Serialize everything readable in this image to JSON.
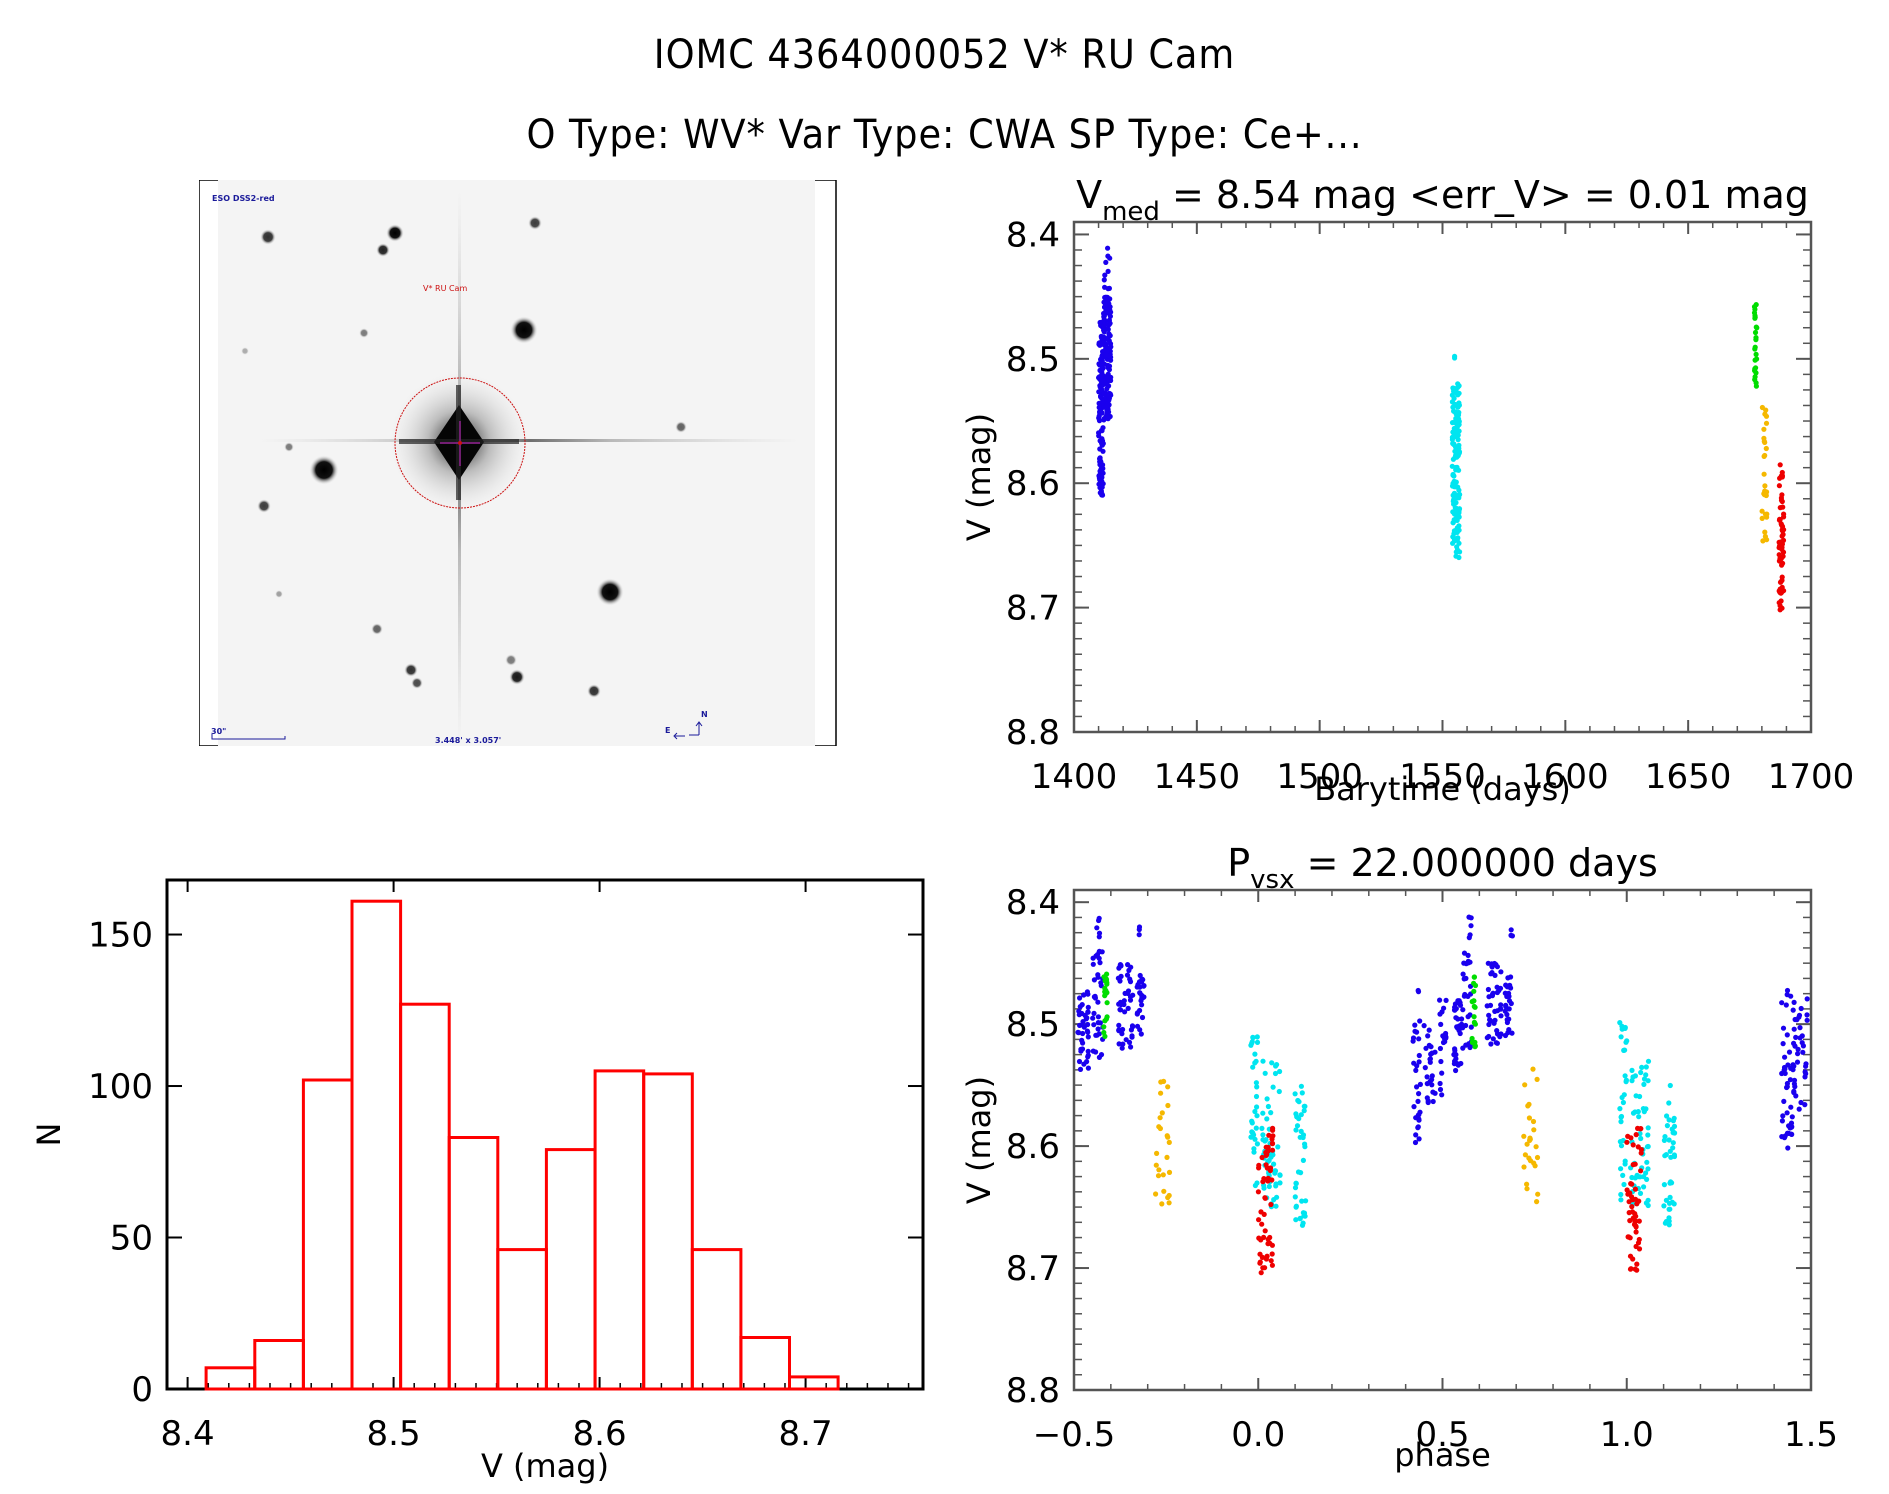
{
  "header": {
    "title_line1": "IOMC 4364000052    V* RU Cam",
    "title_line2": "O Type: WV*  Var Type: CWA  SP Type: Ce+..."
  },
  "finder_chart": {
    "survey_label": "ESO DSS2-red",
    "target_label": "V* RU Cam",
    "scale_label": "30\"",
    "field_size_label": "3.448' x 3.057'",
    "compass_north": "N",
    "compass_east": "E",
    "colors": {
      "annotation_blue": "#1a1a9a",
      "target_red": "#cc1111",
      "crosshair": "#aa22aa"
    }
  },
  "chart_data": [
    {
      "id": "lightcurve",
      "type": "scatter",
      "title": "V_med = 8.54 mag <err_V> = 0.01 mag",
      "title_parts": {
        "v": "V",
        "sub": "med",
        "rest": " = 8.54 mag <err_V> = 0.01 mag"
      },
      "xlabel": "Barytime (days)",
      "ylabel": "V (mag)",
      "xlim": [
        1400,
        1700
      ],
      "ylim": [
        8.8,
        8.39
      ],
      "y_inverted": true,
      "xticks": [
        1400,
        1450,
        1500,
        1550,
        1600,
        1650,
        1700
      ],
      "xtick_labels": [
        "1400",
        "1450",
        "1500",
        "1550",
        "1600",
        "1650",
        "1700"
      ],
      "xminor_step": 10,
      "yticks": [
        8.4,
        8.5,
        8.6,
        8.7,
        8.8
      ],
      "ytick_labels": [
        "8.4",
        "8.5",
        "8.6",
        "8.7",
        "8.8"
      ],
      "yminor_step": 0.0125,
      "series": [
        {
          "name": "season-1",
          "color": "#1a00ee",
          "segments": [
            {
              "x": [
                1410,
                1412
              ],
              "y": [
                8.47,
                8.61
              ],
              "n": 130
            },
            {
              "x": [
                1412,
                1415
              ],
              "y": [
                8.45,
                8.55
              ],
              "n": 130
            },
            {
              "x": [
                1412,
                1415
              ],
              "y": [
                8.41,
                8.45
              ],
              "n": 10
            }
          ]
        },
        {
          "name": "season-2",
          "color": "#00e5f0",
          "segments": [
            {
              "x": [
                1554,
                1557
              ],
              "y": [
                8.52,
                8.66
              ],
              "n": 150
            },
            {
              "x": [
                1554,
                1555
              ],
              "y": [
                8.497,
                8.5
              ],
              "n": 2
            }
          ]
        },
        {
          "name": "season-3a",
          "color": "#00dd00",
          "segments": [
            {
              "x": [
                1677,
                1678
              ],
              "y": [
                8.455,
                8.525
              ],
              "n": 25
            }
          ]
        },
        {
          "name": "season-3b",
          "color": "#f5b800",
          "segments": [
            {
              "x": [
                1680,
                1682
              ],
              "y": [
                8.535,
                8.65
              ],
              "n": 28
            }
          ]
        },
        {
          "name": "season-3c",
          "color": "#ee0000",
          "segments": [
            {
              "x": [
                1687,
                1689
              ],
              "y": [
                8.585,
                8.705
              ],
              "n": 60
            }
          ]
        }
      ]
    },
    {
      "id": "histogram",
      "type": "bar",
      "title": "",
      "xlabel": "V (mag)",
      "ylabel": "N",
      "xlim": [
        8.39,
        8.757
      ],
      "ylim": [
        0,
        168
      ],
      "xticks": [
        8.4,
        8.5,
        8.6,
        8.7
      ],
      "xtick_labels": [
        "8.4",
        "8.5",
        "8.6",
        "8.7"
      ],
      "xminor_step": 0.01,
      "yticks": [
        0,
        50,
        100,
        150
      ],
      "ytick_labels": [
        "0",
        "50",
        "100",
        "150"
      ],
      "bin_start": 8.409,
      "bin_width": 0.0236,
      "values": [
        7,
        16,
        102,
        161,
        127,
        83,
        46,
        79,
        105,
        104,
        46,
        17,
        4
      ],
      "color": "#ff0000"
    },
    {
      "id": "phased",
      "type": "scatter",
      "title": "P_vsx = 22.000000 days",
      "title_parts": {
        "v": "P",
        "sub": "vsx",
        "rest": " = 22.000000 days"
      },
      "xlabel": "phase",
      "ylabel": "V (mag)",
      "xlim": [
        -0.5,
        1.5
      ],
      "ylim": [
        8.8,
        8.39
      ],
      "y_inverted": true,
      "xticks": [
        -0.5,
        0.0,
        0.5,
        1.0,
        1.5
      ],
      "xtick_labels": [
        "−0.5",
        "0.0",
        "0.5",
        "1.0",
        "1.5"
      ],
      "xminor_step": 0.1,
      "yticks": [
        8.4,
        8.5,
        8.6,
        8.7,
        8.8
      ],
      "ytick_labels": [
        "8.4",
        "8.5",
        "8.6",
        "8.7",
        "8.8"
      ],
      "yminor_step": 0.0125,
      "series": [
        {
          "name": "season-1",
          "color": "#1a00ee",
          "segments": [
            {
              "x": [
                -0.49,
                -0.46
              ],
              "y": [
                8.47,
                8.54
              ],
              "n": 40
            },
            {
              "x": [
                -0.45,
                -0.42
              ],
              "y": [
                8.44,
                8.53
              ],
              "n": 35
            },
            {
              "x": [
                -0.44,
                -0.43
              ],
              "y": [
                8.41,
                8.43
              ],
              "n": 5
            },
            {
              "x": [
                -0.38,
                -0.34
              ],
              "y": [
                8.45,
                8.52
              ],
              "n": 45
            },
            {
              "x": [
                -0.33,
                -0.31
              ],
              "y": [
                8.46,
                8.51
              ],
              "n": 25
            },
            {
              "x": [
                -0.33,
                -0.32
              ],
              "y": [
                8.42,
                8.43
              ],
              "n": 3
            },
            {
              "x": [
                0.42,
                0.44
              ],
              "y": [
                8.47,
                8.61
              ],
              "n": 30
            },
            {
              "x": [
                0.45,
                0.48
              ],
              "y": [
                8.5,
                8.57
              ],
              "n": 25
            },
            {
              "x": [
                0.49,
                0.51
              ],
              "y": [
                8.48,
                8.57
              ],
              "n": 20
            },
            {
              "x": [
                0.53,
                0.55
              ],
              "y": [
                8.48,
                8.54
              ],
              "n": 30
            },
            {
              "x": [
                0.55,
                0.58
              ],
              "y": [
                8.44,
                8.52
              ],
              "n": 30
            },
            {
              "x": [
                0.57,
                0.58
              ],
              "y": [
                8.41,
                8.43
              ],
              "n": 5
            },
            {
              "x": [
                0.62,
                0.66
              ],
              "y": [
                8.45,
                8.52
              ],
              "n": 45
            },
            {
              "x": [
                0.67,
                0.69
              ],
              "y": [
                8.46,
                8.51
              ],
              "n": 25
            },
            {
              "x": [
                0.68,
                0.69
              ],
              "y": [
                8.42,
                8.43
              ],
              "n": 3
            },
            {
              "x": [
                1.42,
                1.45
              ],
              "y": [
                8.47,
                8.61
              ],
              "n": 40
            },
            {
              "x": [
                1.45,
                1.49
              ],
              "y": [
                8.47,
                8.57
              ],
              "n": 40
            }
          ]
        },
        {
          "name": "season-2",
          "color": "#00e5f0",
          "segments": [
            {
              "x": [
                -0.02,
                0.0
              ],
              "y": [
                8.497,
                8.65
              ],
              "n": 30
            },
            {
              "x": [
                0.01,
                0.06
              ],
              "y": [
                8.53,
                8.65
              ],
              "n": 55
            },
            {
              "x": [
                0.1,
                0.13
              ],
              "y": [
                8.55,
                8.665
              ],
              "n": 40
            },
            {
              "x": [
                0.98,
                1.0
              ],
              "y": [
                8.497,
                8.65
              ],
              "n": 30
            },
            {
              "x": [
                1.01,
                1.06
              ],
              "y": [
                8.53,
                8.65
              ],
              "n": 55
            },
            {
              "x": [
                1.1,
                1.13
              ],
              "y": [
                8.55,
                8.665
              ],
              "n": 40
            }
          ]
        },
        {
          "name": "season-3a",
          "color": "#00dd00",
          "segments": [
            {
              "x": [
                -0.42,
                -0.41
              ],
              "y": [
                8.455,
                8.525
              ],
              "n": 20
            },
            {
              "x": [
                0.58,
                0.59
              ],
              "y": [
                8.455,
                8.525
              ],
              "n": 20
            }
          ]
        },
        {
          "name": "season-3b",
          "color": "#f5b800",
          "segments": [
            {
              "x": [
                -0.28,
                -0.24
              ],
              "y": [
                8.535,
                8.65
              ],
              "n": 25
            },
            {
              "x": [
                0.72,
                0.76
              ],
              "y": [
                8.535,
                8.65
              ],
              "n": 25
            }
          ]
        },
        {
          "name": "season-3c",
          "color": "#ee0000",
          "segments": [
            {
              "x": [
                0.0,
                0.04
              ],
              "y": [
                8.585,
                8.705
              ],
              "n": 55
            },
            {
              "x": [
                1.0,
                1.04
              ],
              "y": [
                8.585,
                8.705
              ],
              "n": 55
            }
          ]
        }
      ]
    }
  ]
}
